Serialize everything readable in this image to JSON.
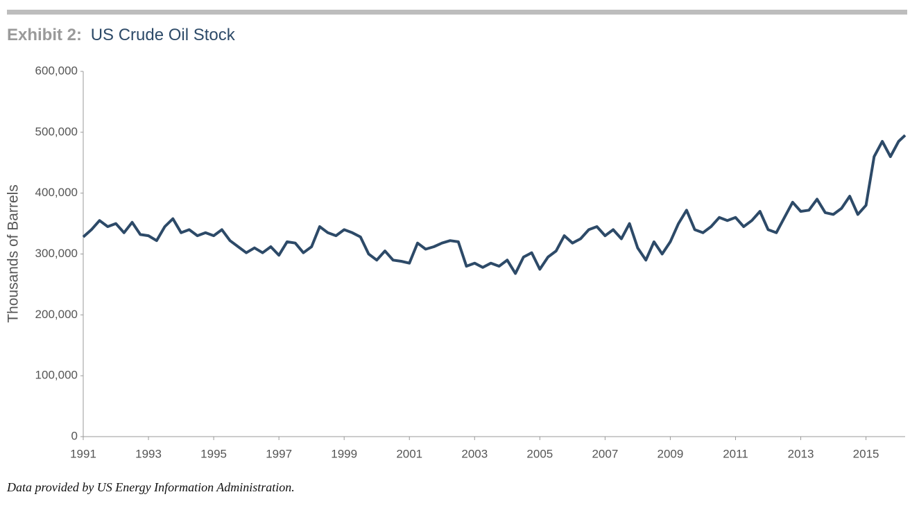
{
  "chart_data": {
    "type": "line",
    "exhibit": "Exhibit 2:",
    "title": "US Crude Oil Stock",
    "y_label": "Thousands of Barrels",
    "source": "Data provided by US Energy Information Administration.",
    "x": [
      1991.0,
      1991.25,
      1991.5,
      1991.75,
      1992.0,
      1992.25,
      1992.5,
      1992.75,
      1993.0,
      1993.25,
      1993.5,
      1993.75,
      1994.0,
      1994.25,
      1994.5,
      1994.75,
      1995.0,
      1995.25,
      1995.5,
      1995.75,
      1996.0,
      1996.25,
      1996.5,
      1996.75,
      1997.0,
      1997.25,
      1997.5,
      1997.75,
      1998.0,
      1998.25,
      1998.5,
      1998.75,
      1999.0,
      1999.25,
      1999.5,
      1999.75,
      2000.0,
      2000.25,
      2000.5,
      2000.75,
      2001.0,
      2001.25,
      2001.5,
      2001.75,
      2002.0,
      2002.25,
      2002.5,
      2002.75,
      2003.0,
      2003.25,
      2003.5,
      2003.75,
      2004.0,
      2004.25,
      2004.5,
      2004.75,
      2005.0,
      2005.25,
      2005.5,
      2005.75,
      2006.0,
      2006.25,
      2006.5,
      2006.75,
      2007.0,
      2007.25,
      2007.5,
      2007.75,
      2008.0,
      2008.25,
      2008.5,
      2008.75,
      2009.0,
      2009.25,
      2009.5,
      2009.75,
      2010.0,
      2010.25,
      2010.5,
      2010.75,
      2011.0,
      2011.25,
      2011.5,
      2011.75,
      2012.0,
      2012.25,
      2012.5,
      2012.75,
      2013.0,
      2013.25,
      2013.5,
      2013.75,
      2014.0,
      2014.25,
      2014.5,
      2014.75,
      2015.0,
      2015.25,
      2015.5,
      2015.75,
      2016.0,
      2016.2
    ],
    "series": [
      {
        "name": "US Crude Oil Stock",
        "color": "#2d4a68",
        "values": [
          328000,
          340000,
          355000,
          345000,
          350000,
          335000,
          352000,
          332000,
          330000,
          322000,
          345000,
          358000,
          335000,
          340000,
          330000,
          335000,
          330000,
          340000,
          322000,
          312000,
          302000,
          310000,
          302000,
          312000,
          298000,
          320000,
          318000,
          302000,
          312000,
          345000,
          335000,
          330000,
          340000,
          335000,
          328000,
          300000,
          290000,
          305000,
          290000,
          288000,
          285000,
          318000,
          308000,
          312000,
          318000,
          322000,
          320000,
          280000,
          285000,
          278000,
          285000,
          280000,
          290000,
          268000,
          295000,
          302000,
          275000,
          295000,
          305000,
          330000,
          318000,
          325000,
          340000,
          345000,
          330000,
          340000,
          325000,
          350000,
          310000,
          290000,
          320000,
          300000,
          320000,
          350000,
          372000,
          340000,
          335000,
          345000,
          360000,
          355000,
          360000,
          345000,
          355000,
          370000,
          340000,
          335000,
          360000,
          385000,
          370000,
          372000,
          390000,
          368000,
          365000,
          375000,
          395000,
          365000,
          380000,
          460000,
          485000,
          460000,
          485000,
          495000
        ]
      }
    ],
    "xlim": [
      1991,
      2016.2
    ],
    "xticks": [
      1991,
      1993,
      1995,
      1997,
      1999,
      2001,
      2003,
      2005,
      2007,
      2009,
      2011,
      2013,
      2015
    ],
    "ylim": [
      0,
      600000
    ],
    "yticks": [
      0,
      {
        "value": 100000,
        "label": "100,000"
      },
      {
        "value": 200000,
        "label": "200,000"
      },
      {
        "value": 300000,
        "label": "300,000"
      },
      {
        "value": 400000,
        "label": "400,000"
      },
      {
        "value": 500000,
        "label": "500,000"
      },
      {
        "value": 600000,
        "label": "600,000"
      }
    ]
  }
}
